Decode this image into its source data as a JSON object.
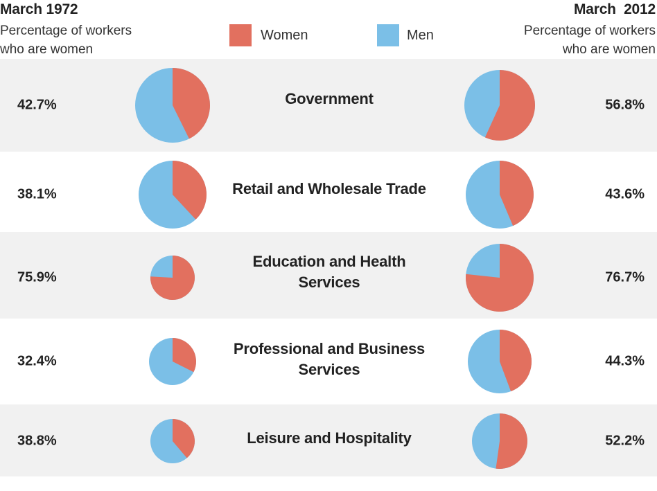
{
  "header": {
    "left_title": "March 1972",
    "left_sub_1": "Percentage of workers",
    "left_sub_2": "who are women",
    "right_title": "March  2012",
    "right_sub_1": "Percentage of workers",
    "right_sub_2": "who are women"
  },
  "legend": {
    "women_label": "Women",
    "men_label": "Men"
  },
  "colors": {
    "women": "#e2705f",
    "men": "#7bbfe7",
    "shade": "#f1f1f1"
  },
  "chart_data": {
    "type": "pie",
    "series": [
      {
        "name": "Women"
      },
      {
        "name": "Men"
      }
    ],
    "years": [
      "March 1972",
      "March  2012"
    ],
    "rows": [
      {
        "category": "Government",
        "lines": [
          "Government"
        ],
        "women_1972": 42.7,
        "women_2012": 56.8,
        "label_1972": "42.7%",
        "label_2012": "56.8%"
      },
      {
        "category": "Retail and Wholesale Trade",
        "lines": [
          "Retail and Wholesale Trade"
        ],
        "women_1972": 38.1,
        "women_2012": 43.6,
        "label_1972": "38.1%",
        "label_2012": "43.6%"
      },
      {
        "category": "Education and Health Services",
        "lines": [
          "Education and Health",
          "Services"
        ],
        "women_1972": 75.9,
        "women_2012": 76.7,
        "label_1972": "75.9%",
        "label_2012": "76.7%"
      },
      {
        "category": "Professional and Business Services",
        "lines": [
          "Professional and Business",
          "Services"
        ],
        "women_1972": 32.4,
        "women_2012": 44.3,
        "label_1972": "32.4%",
        "label_2012": "44.3%"
      },
      {
        "category": "Leisure and Hospitality",
        "lines": [
          "Leisure and Hospitality"
        ],
        "women_1972": 38.8,
        "women_2012": 52.2,
        "label_1972": "38.8%",
        "label_2012": "52.2%"
      }
    ]
  }
}
